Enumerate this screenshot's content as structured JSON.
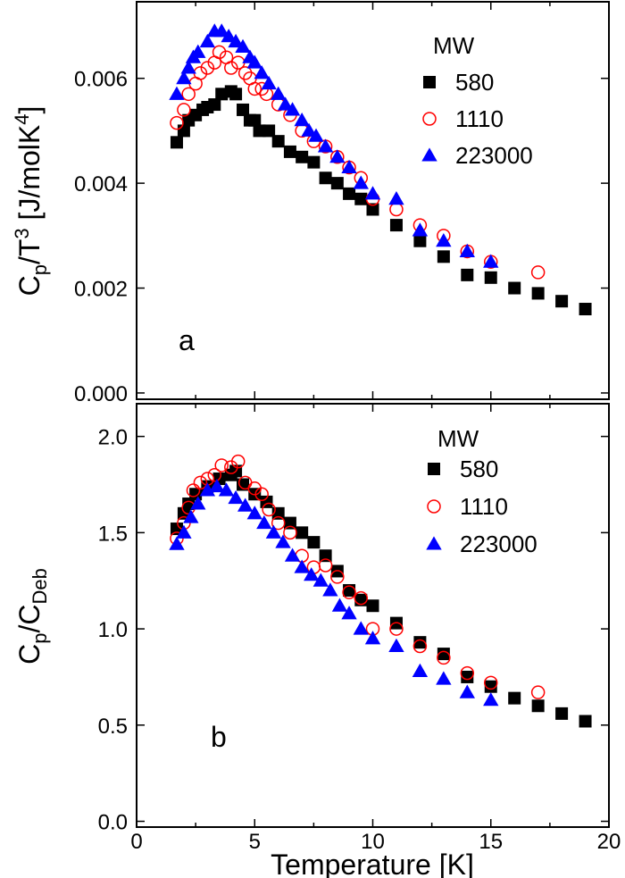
{
  "chart_data": [
    {
      "type": "scatter",
      "panel_label": "a",
      "xlabel": "",
      "ylabel": {
        "main": "C",
        "sub": "p",
        "mid": "/T",
        "sup": "3",
        "unit": " [J/molK",
        "unit_sup": "4",
        "end": "]"
      },
      "xlim": [
        0,
        20
      ],
      "ylim": [
        -0.00012,
        0.00746
      ],
      "yticks": [
        "0.000",
        "0.002",
        "0.004",
        "0.006"
      ],
      "ytick_values": [
        0,
        0.002,
        0.004,
        0.006
      ],
      "grid": false,
      "legend_title": "MW",
      "legend_position": "top-right",
      "series": [
        {
          "name": "580",
          "marker": "square",
          "color": "#000000",
          "fill": true,
          "x": [
            1.7,
            2.0,
            2.2,
            2.5,
            2.8,
            3.0,
            3.3,
            3.6,
            4.0,
            4.2,
            4.5,
            4.8,
            5.0,
            5.2,
            5.6,
            6.0,
            6.5,
            7.0,
            7.5,
            8.0,
            8.5,
            9.0,
            9.5,
            10,
            11,
            12,
            13,
            14,
            15,
            16,
            17,
            18,
            19
          ],
          "y": [
            0.00478,
            0.005,
            0.0052,
            0.0053,
            0.0054,
            0.00545,
            0.0055,
            0.0057,
            0.00575,
            0.0057,
            0.0054,
            0.0052,
            0.0052,
            0.005,
            0.005,
            0.0048,
            0.0046,
            0.0045,
            0.0044,
            0.0041,
            0.004,
            0.0038,
            0.0037,
            0.0035,
            0.0032,
            0.0029,
            0.0026,
            0.00225,
            0.0022,
            0.002,
            0.0019,
            0.00175,
            0.0016
          ]
        },
        {
          "name": "1110",
          "marker": "circle",
          "color": "#ff0000",
          "fill": false,
          "x": [
            1.7,
            2.0,
            2.2,
            2.5,
            2.7,
            3.0,
            3.3,
            3.5,
            3.8,
            4.0,
            4.3,
            4.6,
            4.8,
            5.0,
            5.3,
            5.5,
            6.0,
            6.5,
            7.0,
            7.5,
            8.0,
            8.5,
            9.0,
            9.5,
            10,
            11,
            12,
            13,
            14,
            15,
            17
          ],
          "y": [
            0.00515,
            0.0054,
            0.0057,
            0.0059,
            0.0061,
            0.0062,
            0.0063,
            0.0065,
            0.0064,
            0.0062,
            0.0063,
            0.0061,
            0.006,
            0.0058,
            0.0058,
            0.0057,
            0.0055,
            0.0053,
            0.005,
            0.0048,
            0.0047,
            0.0045,
            0.0043,
            0.0041,
            0.0037,
            0.0035,
            0.0032,
            0.003,
            0.0027,
            0.0025,
            0.0023
          ]
        },
        {
          "name": "223000",
          "marker": "triangle",
          "color": "#0000ff",
          "fill": true,
          "x": [
            1.7,
            2.0,
            2.2,
            2.4,
            2.6,
            3.0,
            3.3,
            3.6,
            3.9,
            4.2,
            4.5,
            4.8,
            5.0,
            5.3,
            5.6,
            6.0,
            6.3,
            6.6,
            7.0,
            7.3,
            7.6,
            8.0,
            8.5,
            9.0,
            9.5,
            10,
            11,
            12,
            13,
            14,
            15
          ],
          "y": [
            0.0057,
            0.006,
            0.0062,
            0.0064,
            0.0065,
            0.0067,
            0.0069,
            0.0069,
            0.0068,
            0.0067,
            0.0066,
            0.0064,
            0.0063,
            0.0061,
            0.0059,
            0.0057,
            0.0055,
            0.0054,
            0.0052,
            0.005,
            0.0049,
            0.0047,
            0.0045,
            0.0043,
            0.004,
            0.0038,
            0.0037,
            0.0031,
            0.0029,
            0.0027,
            0.0025
          ]
        }
      ]
    },
    {
      "type": "scatter",
      "panel_label": "b",
      "xlabel": "Temperature [K]",
      "ylabel": {
        "main": "C",
        "sub": "p",
        "mid": "/C",
        "sub2": "Deb"
      },
      "xlim": [
        0,
        20
      ],
      "ylim": [
        -0.03,
        2.17
      ],
      "xticks": [
        "0",
        "5",
        "10",
        "15",
        "20"
      ],
      "xtick_values": [
        0,
        5,
        10,
        15,
        20
      ],
      "yticks": [
        "0.0",
        "0.5",
        "1.0",
        "1.5",
        "2.0"
      ],
      "ytick_values": [
        0,
        0.5,
        1.0,
        1.5,
        2.0
      ],
      "grid": false,
      "legend_title": "MW",
      "legend_position": "top-right",
      "series": [
        {
          "name": "580",
          "marker": "square",
          "color": "#000000",
          "fill": true,
          "x": [
            1.7,
            2.0,
            2.2,
            2.5,
            3.0,
            3.5,
            4.0,
            4.2,
            4.5,
            5.0,
            5.5,
            6.0,
            6.5,
            7.0,
            7.5,
            8.0,
            8.5,
            9.0,
            9.5,
            10,
            11,
            12,
            13,
            14,
            15,
            16,
            17,
            18,
            19
          ],
          "y": [
            1.52,
            1.6,
            1.65,
            1.7,
            1.74,
            1.78,
            1.8,
            1.82,
            1.75,
            1.7,
            1.66,
            1.6,
            1.55,
            1.5,
            1.45,
            1.38,
            1.3,
            1.2,
            1.15,
            1.12,
            1.03,
            0.93,
            0.87,
            0.75,
            0.7,
            0.64,
            0.6,
            0.56,
            0.52
          ]
        },
        {
          "name": "1110",
          "marker": "circle",
          "color": "#ff0000",
          "fill": false,
          "x": [
            1.7,
            2.0,
            2.2,
            2.4,
            2.7,
            3.0,
            3.3,
            3.6,
            4.0,
            4.3,
            4.6,
            5.0,
            5.3,
            5.6,
            6.0,
            6.5,
            7.0,
            7.5,
            8.0,
            8.5,
            9.0,
            9.5,
            10,
            11,
            12,
            13,
            14,
            15,
            17
          ],
          "y": [
            1.47,
            1.55,
            1.63,
            1.72,
            1.76,
            1.78,
            1.8,
            1.85,
            1.84,
            1.87,
            1.76,
            1.73,
            1.7,
            1.62,
            1.55,
            1.5,
            1.38,
            1.32,
            1.33,
            1.27,
            1.19,
            1.16,
            1.0,
            1.0,
            0.91,
            0.85,
            0.77,
            0.72,
            0.67
          ]
        },
        {
          "name": "223000",
          "marker": "triangle",
          "color": "#0000ff",
          "fill": true,
          "x": [
            1.7,
            2.0,
            2.3,
            2.6,
            3.0,
            3.4,
            3.8,
            4.2,
            4.6,
            5.0,
            5.4,
            5.8,
            6.2,
            6.6,
            7.0,
            7.4,
            7.8,
            8.2,
            8.6,
            9.0,
            9.5,
            10,
            11,
            12,
            13,
            14,
            15
          ],
          "y": [
            1.44,
            1.5,
            1.58,
            1.65,
            1.72,
            1.74,
            1.72,
            1.68,
            1.64,
            1.6,
            1.55,
            1.5,
            1.45,
            1.38,
            1.32,
            1.28,
            1.25,
            1.2,
            1.12,
            1.08,
            1.0,
            0.95,
            0.91,
            0.78,
            0.74,
            0.67,
            0.63
          ]
        }
      ]
    }
  ]
}
